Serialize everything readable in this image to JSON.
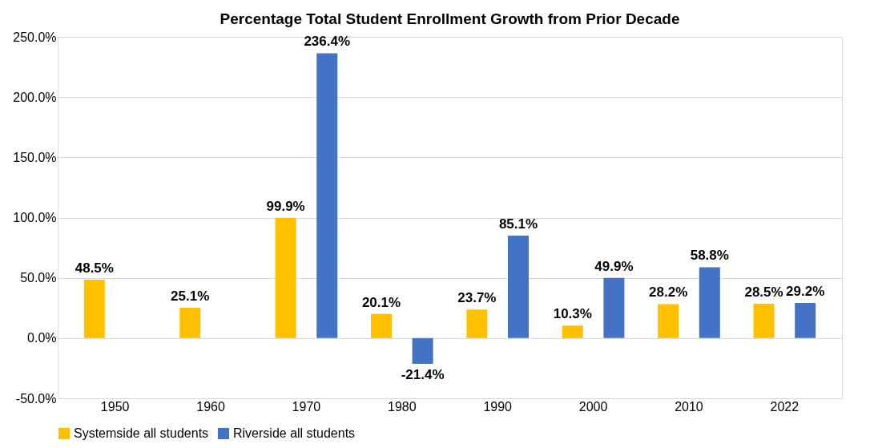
{
  "chart_data": {
    "type": "bar",
    "title": "Percentage Total Student Enrollment Growth from Prior Decade",
    "categories": [
      "1950",
      "1960",
      "1970",
      "1980",
      "1990",
      "2000",
      "2010",
      "2022"
    ],
    "series": [
      {
        "name": "Systemside all students",
        "color": "#ffc000",
        "values": [
          48.5,
          25.1,
          99.9,
          20.1,
          23.7,
          10.3,
          28.2,
          28.5
        ],
        "value_labels": [
          "48.5%",
          "25.1%",
          "99.9%",
          "20.1%",
          "23.7%",
          "10.3%",
          "28.2%",
          "28.5%"
        ]
      },
      {
        "name": "Riverside all students",
        "color": "#4472c4",
        "values": [
          null,
          null,
          236.4,
          -21.4,
          85.1,
          49.9,
          58.8,
          29.2
        ],
        "value_labels": [
          null,
          null,
          "236.4%",
          "-21.4%",
          "85.1%",
          "49.9%",
          "58.8%",
          "29.2%"
        ]
      }
    ],
    "ylim": [
      -50,
      250
    ],
    "yticks": [
      {
        "value": -50,
        "label": "-50.0%"
      },
      {
        "value": 0,
        "label": "0.0%"
      },
      {
        "value": 50,
        "label": "50.0%"
      },
      {
        "value": 100,
        "label": "100.0%"
      },
      {
        "value": 150,
        "label": "150.0%"
      },
      {
        "value": 200,
        "label": "200.0%"
      },
      {
        "value": 250,
        "label": "250.0%"
      }
    ],
    "grid": "y",
    "legend": "bottom"
  }
}
